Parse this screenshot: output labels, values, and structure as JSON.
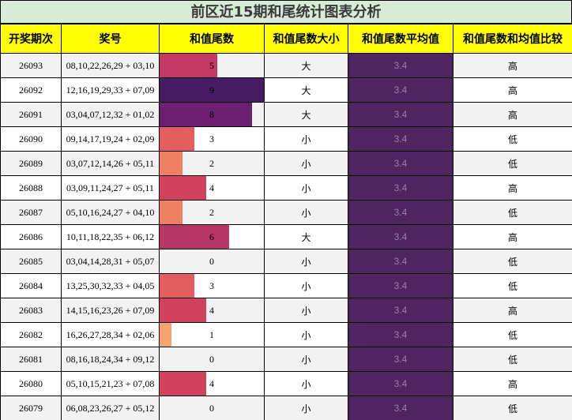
{
  "title": "前区近15期和尾统计图表分析",
  "headers": [
    "开奖期次",
    "奖号",
    "和值尾数",
    "和值尾数大小",
    "和值尾数平均值",
    "和值尾数和均值比较"
  ],
  "average": "3.4",
  "chart_data": {
    "type": "table",
    "title": "前区近15期和尾统计图表分析",
    "columns": [
      "开奖期次",
      "奖号",
      "和值尾数",
      "和值尾数大小",
      "和值尾数平均值",
      "和值尾数和均值比较"
    ],
    "rows": [
      {
        "issue": "26093",
        "numbers": "08,10,22,26,29 + 03,10",
        "tail": 5,
        "size": "大",
        "avg": "3.4",
        "cmp": "高"
      },
      {
        "issue": "26092",
        "numbers": "12,16,19,29,33 + 07,09",
        "tail": 9,
        "size": "大",
        "avg": "3.4",
        "cmp": "高"
      },
      {
        "issue": "26091",
        "numbers": "03,04,07,12,32 + 01,02",
        "tail": 8,
        "size": "大",
        "avg": "3.4",
        "cmp": "高"
      },
      {
        "issue": "26090",
        "numbers": "09,14,17,19,24 + 02,09",
        "tail": 3,
        "size": "小",
        "avg": "3.4",
        "cmp": "低"
      },
      {
        "issue": "26089",
        "numbers": "03,07,12,14,26 + 05,11",
        "tail": 2,
        "size": "小",
        "avg": "3.4",
        "cmp": "低"
      },
      {
        "issue": "26088",
        "numbers": "03,09,11,24,27 + 05,11",
        "tail": 4,
        "size": "小",
        "avg": "3.4",
        "cmp": "高"
      },
      {
        "issue": "26087",
        "numbers": "05,10,16,24,27 + 04,10",
        "tail": 2,
        "size": "小",
        "avg": "3.4",
        "cmp": "低"
      },
      {
        "issue": "26086",
        "numbers": "10,11,18,22,35 + 06,12",
        "tail": 6,
        "size": "大",
        "avg": "3.4",
        "cmp": "高"
      },
      {
        "issue": "26085",
        "numbers": "03,04,14,28,31 + 05,07",
        "tail": 0,
        "size": "小",
        "avg": "3.4",
        "cmp": "低"
      },
      {
        "issue": "26084",
        "numbers": "13,25,30,32,33 + 04,05",
        "tail": 3,
        "size": "小",
        "avg": "3.4",
        "cmp": "低"
      },
      {
        "issue": "26083",
        "numbers": "14,15,16,23,26 + 07,09",
        "tail": 4,
        "size": "小",
        "avg": "3.4",
        "cmp": "高"
      },
      {
        "issue": "26082",
        "numbers": "16,26,27,28,34 + 02,06",
        "tail": 1,
        "size": "小",
        "avg": "3.4",
        "cmp": "低"
      },
      {
        "issue": "26081",
        "numbers": "08,16,18,24,34 + 09,12",
        "tail": 0,
        "size": "小",
        "avg": "3.4",
        "cmp": "低"
      },
      {
        "issue": "26080",
        "numbers": "05,10,15,21,23 + 07,08",
        "tail": 4,
        "size": "小",
        "avg": "3.4",
        "cmp": "高"
      },
      {
        "issue": "26079",
        "numbers": "06,08,23,26,27 + 05,12",
        "tail": 0,
        "size": "小",
        "avg": "3.4",
        "cmp": "低"
      }
    ],
    "tail_max": 9,
    "colors": {
      "header_bg": "#ffff00",
      "title_bg": "#d7ebd7",
      "avg_bg": "#4e2461",
      "tail_scale": [
        "#f8a26f",
        "#f08063",
        "#e35c60",
        "#d0425f",
        "#c23a63",
        "#b53766",
        "#9f2f6d",
        "#6d2070",
        "#461c62"
      ]
    }
  }
}
